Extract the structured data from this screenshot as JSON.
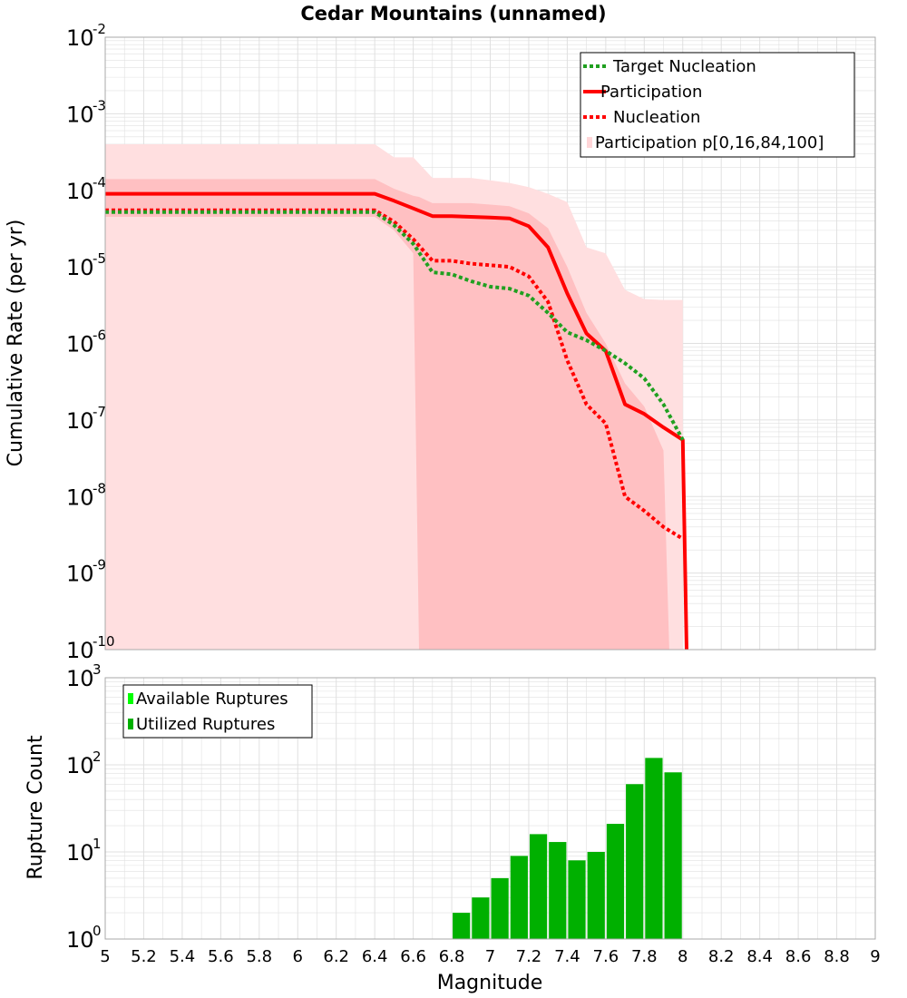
{
  "chart_data": [
    {
      "type": "line",
      "title": "Cedar Mountains (unnamed)",
      "xlabel": "",
      "ylabel": "Cumulative Rate (per yr)",
      "yscale": "log",
      "xlim": [
        5,
        9
      ],
      "ylim_exponents": [
        -10,
        -2
      ],
      "grid": true,
      "legend_position": "top-right",
      "legend": [
        {
          "label": "Target Nucleation",
          "style": "dotted",
          "color": "#20a020"
        },
        {
          "label": "Participation",
          "style": "solid",
          "color": "#ff0000"
        },
        {
          "label": "Nucleation",
          "style": "dotted",
          "color": "#ff0000"
        },
        {
          "label": "Participation p[0,16,84,100]",
          "style": "band",
          "color": "#ffd6d8"
        }
      ],
      "series": [
        {
          "name": "Target Nucleation",
          "x": [
            5.0,
            6.4,
            6.5,
            6.6,
            6.7,
            6.8,
            6.9,
            7.0,
            7.1,
            7.2,
            7.3,
            7.4,
            7.5,
            7.6,
            7.7,
            7.8,
            7.9,
            8.0
          ],
          "y": [
            5.2e-05,
            5.2e-05,
            3.5e-05,
            2e-05,
            8.5e-06,
            8e-06,
            6.5e-06,
            5.5e-06,
            5.2e-06,
            4.2e-06,
            2.5e-06,
            1.4e-06,
            1.1e-06,
            8e-07,
            5.5e-07,
            3.5e-07,
            1.6e-07,
            5.5e-08
          ]
        },
        {
          "name": "Participation",
          "x": [
            5.0,
            6.4,
            6.5,
            6.6,
            6.7,
            6.8,
            6.9,
            7.0,
            7.1,
            7.2,
            7.3,
            7.4,
            7.5,
            7.6,
            7.7,
            7.8,
            7.9,
            8.0,
            8.02
          ],
          "y": [
            9e-05,
            9e-05,
            7.3e-05,
            5.8e-05,
            4.6e-05,
            4.6e-05,
            4.5e-05,
            4.4e-05,
            4.3e-05,
            3.4e-05,
            1.8e-05,
            4.5e-06,
            1.35e-06,
            8e-07,
            1.6e-07,
            1.2e-07,
            8e-08,
            5.5e-08,
            1e-10
          ]
        },
        {
          "name": "Nucleation",
          "x": [
            5.0,
            6.4,
            6.5,
            6.6,
            6.7,
            6.8,
            6.9,
            7.0,
            7.1,
            7.2,
            7.3,
            7.4,
            7.5,
            7.6,
            7.7,
            7.8,
            7.9,
            8.0
          ],
          "y": [
            5.5e-05,
            5.5e-05,
            3.9e-05,
            2.3e-05,
            1.2e-05,
            1.2e-05,
            1.1e-05,
            1.05e-05,
            1e-05,
            7.5e-06,
            3.5e-06,
            6e-07,
            1.6e-07,
            9e-08,
            1e-08,
            6.5e-09,
            4e-09,
            2.8e-09
          ]
        }
      ],
      "bands": [
        {
          "name": "p0-p100",
          "x": [
            5.0,
            6.4,
            6.5,
            6.6,
            6.7,
            6.8,
            6.9,
            7.0,
            7.1,
            7.2,
            7.3,
            7.4,
            7.5,
            7.6,
            7.7,
            7.8,
            7.9,
            8.0
          ],
          "upper": [
            0.0004,
            0.0004,
            0.00027,
            0.00027,
            0.000145,
            0.000145,
            0.000145,
            0.000135,
            0.000125,
            0.00011,
            9e-05,
            7e-05,
            1.8e-05,
            1.5e-05,
            5e-06,
            3.8e-06,
            3.7e-06,
            3.7e-06
          ],
          "lower": [
            1e-10,
            1e-10,
            1e-10,
            1e-10,
            1e-10,
            1e-10,
            1e-10,
            1e-10,
            1e-10,
            1e-10,
            1e-10,
            1e-10,
            1e-10,
            1e-10,
            1e-10,
            1e-10,
            1e-10,
            1e-10
          ]
        },
        {
          "name": "p16-p84",
          "x": [
            5.0,
            6.4,
            6.5,
            6.6,
            6.63,
            6.7,
            6.8,
            6.9,
            7.0,
            7.1,
            7.2,
            7.3,
            7.4,
            7.5,
            7.6,
            7.7,
            7.8,
            7.9,
            7.93
          ],
          "upper": [
            0.00014,
            0.00014,
            0.000105,
            8.5e-05,
            8.2e-05,
            6.8e-05,
            6.8e-05,
            6.8e-05,
            6.5e-05,
            6.2e-05,
            5e-05,
            3.2e-05,
            1e-05,
            2.5e-06,
            1e-06,
            3e-07,
            1.5e-07,
            4e-08,
            1e-10
          ],
          "lower": [
            4.5e-05,
            4.5e-05,
            3e-05,
            1.5e-05,
            1e-10,
            1e-10,
            1e-10,
            1e-10,
            1e-10,
            1e-10,
            1e-10,
            1e-10,
            1e-10,
            1e-10,
            1e-10,
            1e-10,
            1e-10,
            1e-10,
            1e-10
          ]
        }
      ]
    },
    {
      "type": "bar",
      "xlabel": "Magnitude",
      "ylabel": "Rupture Count",
      "yscale": "log",
      "xlim": [
        5,
        9
      ],
      "ylim_exponents": [
        0,
        3
      ],
      "grid": true,
      "legend_position": "top-left",
      "legend": [
        {
          "label": "Available Ruptures",
          "color": "#00ff00"
        },
        {
          "label": "Utilized Ruptures",
          "color": "#00b000"
        }
      ],
      "bin_width": 0.1,
      "bins": [
        6.5,
        6.8,
        6.9,
        7.0,
        7.1,
        7.2,
        7.3,
        7.4,
        7.5,
        7.6,
        7.7,
        7.8,
        7.9
      ],
      "values": [
        1,
        2,
        3,
        5,
        9,
        16,
        13,
        8,
        10,
        21,
        60,
        120,
        82
      ]
    }
  ],
  "x_ticks": [
    "5",
    "5.2",
    "5.4",
    "5.6",
    "5.8",
    "6",
    "6.2",
    "6.4",
    "6.6",
    "6.8",
    "7",
    "7.2",
    "7.4",
    "7.6",
    "7.8",
    "8",
    "8.2",
    "8.4",
    "8.6",
    "8.8",
    "9"
  ],
  "colors": {
    "target": "#20a020",
    "participation": "#ff0000",
    "band_outer": "#ffdfe0",
    "band_inner": "#ffc0c2",
    "bar": "#00b000",
    "available": "#00ff00",
    "grid": "#e0e0e0",
    "frame": "#a9a9a9"
  }
}
